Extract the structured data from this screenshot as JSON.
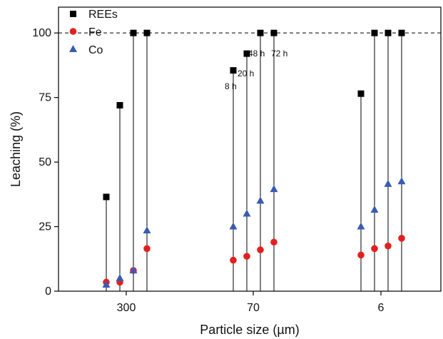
{
  "chart_data": {
    "type": "scatter",
    "title": "",
    "xlabel": "Particle size (µm)",
    "ylabel": "Leaching (%)",
    "categories": [
      "300",
      "70",
      "6"
    ],
    "times": [
      "8 h",
      "20 h",
      "48 h",
      "72 h"
    ],
    "ylim": [
      0,
      110
    ],
    "yticks": [
      0,
      25,
      50,
      75,
      100
    ],
    "reference_line": 100,
    "legend_position": "top-left",
    "grid": false,
    "annotations": [
      "8 h",
      "20 h",
      "48 h",
      "72 h"
    ],
    "series": [
      {
        "name": "REEs",
        "marker": "square",
        "color": "#000000",
        "values": [
          [
            36.5,
            72,
            100,
            100
          ],
          [
            85.5,
            92,
            100,
            100
          ],
          [
            76.5,
            100,
            100,
            100
          ]
        ]
      },
      {
        "name": "Fe",
        "marker": "circle",
        "color": "#e32020",
        "values": [
          [
            3.5,
            3.5,
            8,
            16.5
          ],
          [
            12,
            13.5,
            16,
            19
          ],
          [
            14,
            16.5,
            17.5,
            20.5
          ]
        ]
      },
      {
        "name": "Co",
        "marker": "triangle",
        "color": "#3a5bb5",
        "values": [
          [
            2.5,
            5,
            8,
            23.5
          ],
          [
            25,
            30,
            35,
            39.5
          ],
          [
            25,
            31.5,
            41.5,
            42.5
          ]
        ]
      }
    ]
  }
}
